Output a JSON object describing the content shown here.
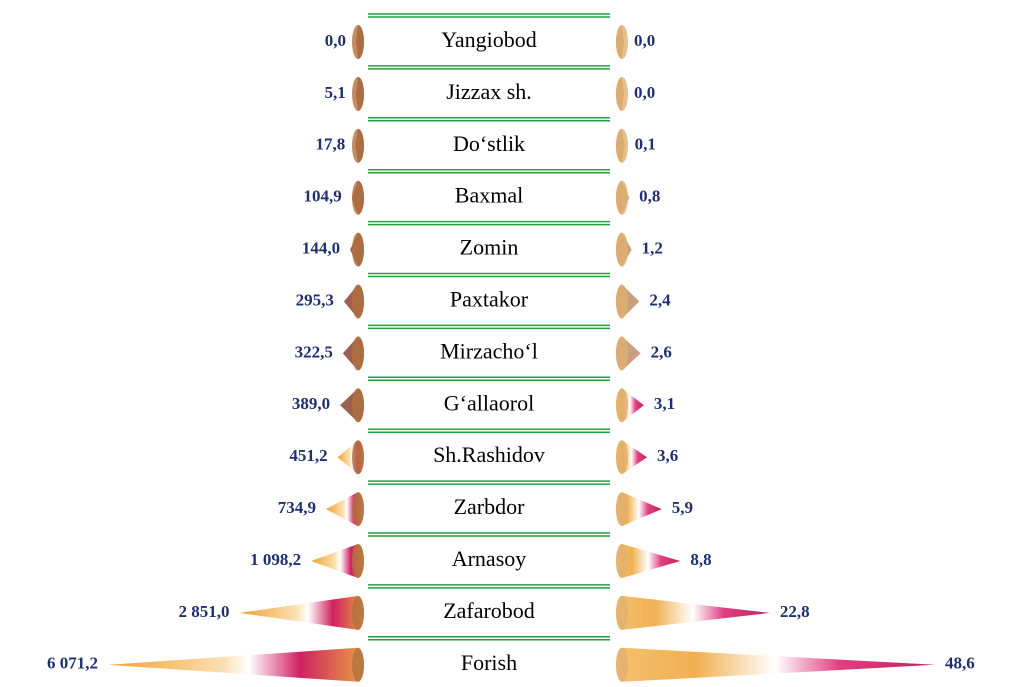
{
  "chart_data": {
    "type": "butterfly-cone",
    "categories": [
      "Yangiobod",
      "Jizzax sh.",
      "Do‘stlik",
      "Baxmal",
      "Zomin",
      "Paxtakor",
      "Mirzacho‘l",
      "G‘allaorol",
      "Sh.Rashidov",
      "Zarbdor",
      "Arnasoy",
      "Zafarobod",
      "Forish"
    ],
    "series": [
      {
        "values": [
          0.0,
          5.1,
          17.8,
          104.9,
          144.0,
          295.3,
          322.5,
          389.0,
          451.2,
          734.9,
          1098.2,
          2851.0,
          6071.2
        ],
        "value_labels": [
          "0,0",
          "5,1",
          "17,8",
          "104,9",
          "144,0",
          "295,3",
          "322,5",
          "389,0",
          "451,2",
          "734,9",
          "1 098,2",
          "2 851,0",
          "6 071,2"
        ]
      },
      {
        "values": [
          0.0,
          0.0,
          0.1,
          0.8,
          1.2,
          2.4,
          2.6,
          3.1,
          3.6,
          5.9,
          8.8,
          22.8,
          48.6
        ],
        "value_labels": [
          "0,0",
          "0,0",
          "0,1",
          "0,8",
          "1,2",
          "2,4",
          "2,6",
          "3,1",
          "3,6",
          "5,9",
          "8,8",
          "22,8",
          "48,6"
        ]
      }
    ]
  }
}
